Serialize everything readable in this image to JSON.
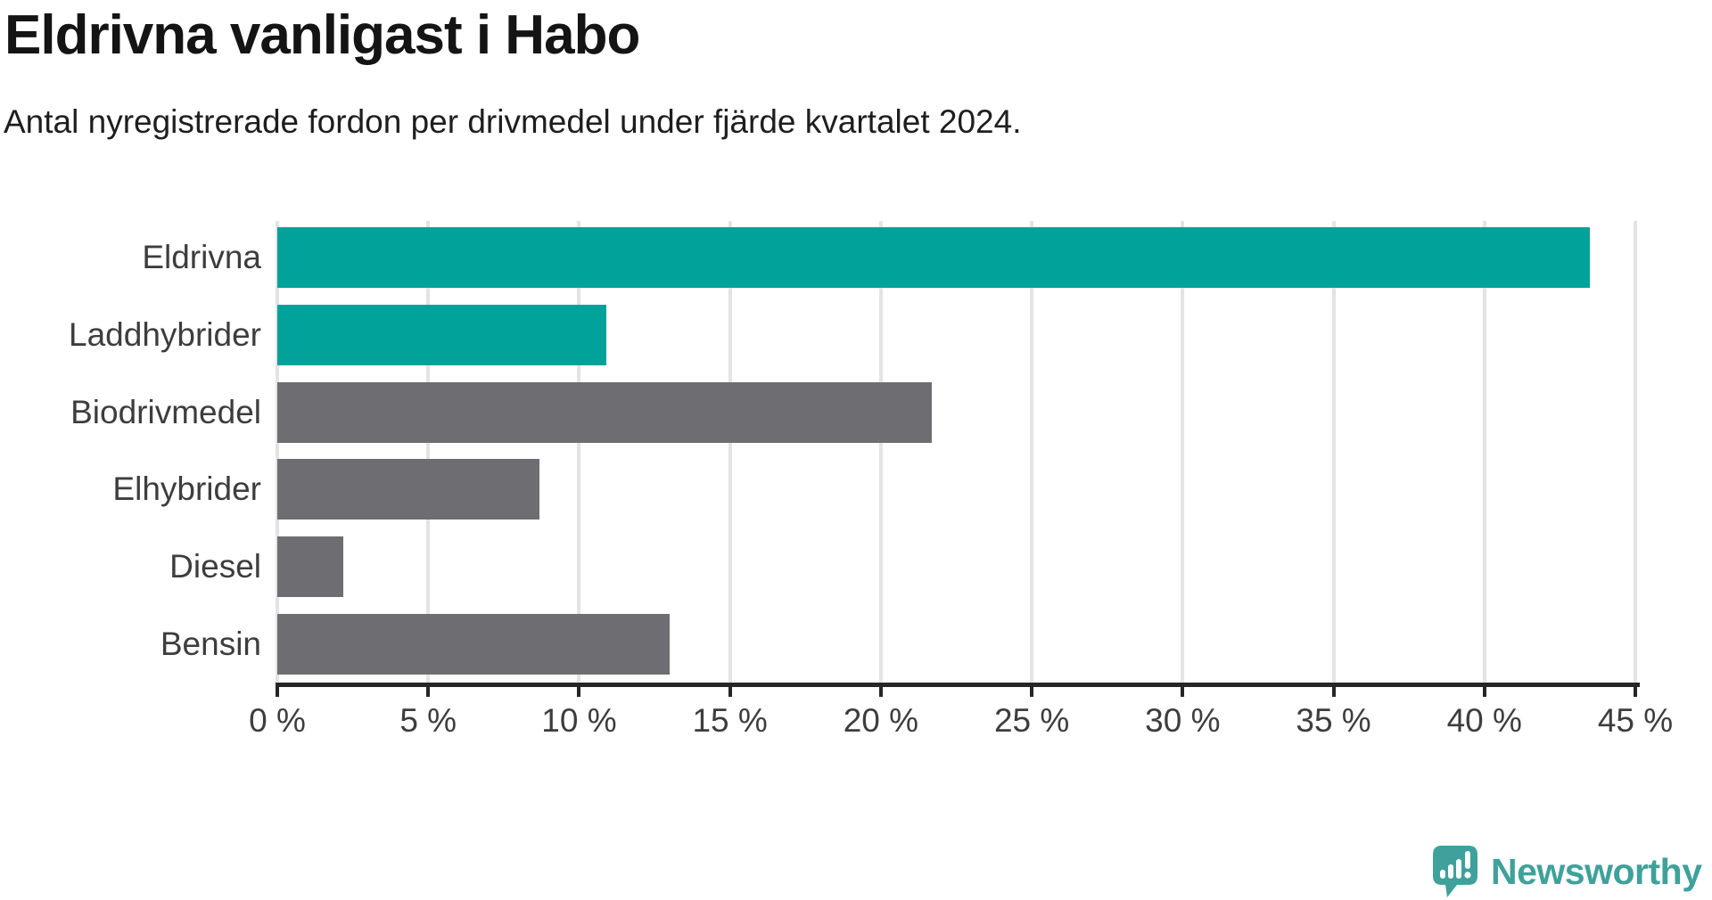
{
  "chart_data": {
    "type": "bar",
    "orientation": "horizontal",
    "title": "Eldrivna vanligast i Habo",
    "subtitle": "Antal nyregistrerade fordon per drivmedel under fjärde kvartalet 2024.",
    "categories": [
      "Eldrivna",
      "Laddhybrider",
      "Biodrivmedel",
      "Elhybrider",
      "Diesel",
      "Bensin"
    ],
    "values": [
      43.5,
      10.9,
      21.7,
      8.7,
      2.2,
      13.0
    ],
    "unit": "%",
    "bar_colors": [
      "#00a29a",
      "#00a29a",
      "#6e6d72",
      "#6e6d72",
      "#6e6d72",
      "#6e6d72"
    ],
    "xlim": [
      0,
      45
    ],
    "x_ticks": [
      0,
      5,
      10,
      15,
      20,
      25,
      30,
      35,
      40,
      45
    ],
    "x_tick_labels": [
      "0 %",
      "5 %",
      "10 %",
      "15 %",
      "20 %",
      "25 %",
      "30 %",
      "35 %",
      "40 %",
      "45 %"
    ],
    "grid": "vertical-only",
    "legend": "none",
    "accent_color": "#00a29a",
    "neutral_color": "#6e6d72"
  },
  "branding": {
    "logo_text": "Newsworthy",
    "logo_color": "#3fa19b",
    "logo_icon": "speech-bubble-bar-chart-icon"
  }
}
